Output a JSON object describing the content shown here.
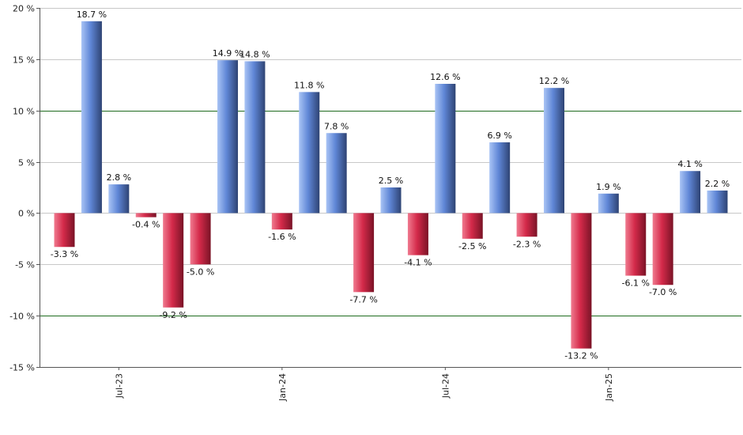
{
  "chart_data": {
    "type": "bar",
    "title": "",
    "xlabel": "",
    "ylabel": "",
    "ylim": [
      -15,
      20
    ],
    "y_ticks": [
      20,
      15,
      10,
      5,
      0,
      -5,
      -10,
      -15
    ],
    "y_tick_labels": [
      "20 %",
      "15 %",
      "10 %",
      "5 %",
      "0 %",
      "-5 %",
      "-10 %",
      "-15 %"
    ],
    "grid": true,
    "highlight_lines": [
      10,
      -10
    ],
    "x_tick_labels": [
      {
        "label": "Jul-23",
        "index": 2
      },
      {
        "label": "Jan-24",
        "index": 8
      },
      {
        "label": "Jul-24",
        "index": 14
      },
      {
        "label": "Jan-25",
        "index": 20
      }
    ],
    "values": [
      -3.3,
      18.7,
      2.8,
      -0.4,
      -9.2,
      -5.0,
      14.9,
      14.8,
      -1.6,
      11.8,
      7.8,
      -7.7,
      2.5,
      -4.1,
      12.6,
      -2.5,
      6.9,
      -2.3,
      12.2,
      -13.2,
      1.9,
      -6.1,
      -7.0,
      4.1,
      2.2
    ],
    "value_labels": [
      "-3.3 %",
      "18.7 %",
      "2.8 %",
      "-0.4 %",
      "-9.2 %",
      "-5.0 %",
      "14.9 %",
      "14.8 %",
      "-1.6 %",
      "11.8 %",
      "7.8 %",
      "-7.7 %",
      "2.5 %",
      "-4.1 %",
      "12.6 %",
      "-2.5 %",
      "6.9 %",
      "-2.3 %",
      "12.2 %",
      "-13.2 %",
      "1.9 %",
      "-6.1 %",
      "-7.0 %",
      "4.1 %",
      "2.2 %"
    ],
    "colors": {
      "positive_light": "#a9c4f5",
      "positive_mid": "#5f86d6",
      "positive_dark": "#2e4373",
      "negative_light": "#f07a8f",
      "negative_mid": "#d42a4a",
      "negative_dark": "#7a1326",
      "grid": "#c8c8c8",
      "highlight_grid": "#1f6b1f",
      "axis": "#555555"
    }
  }
}
